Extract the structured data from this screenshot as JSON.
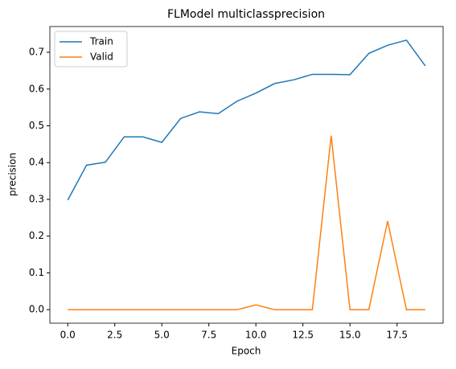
{
  "chart_data": {
    "type": "line",
    "title": "FLModel multiclassprecision",
    "x_label": "Epoch",
    "y_label": "precision",
    "x": [
      0,
      1,
      2,
      3,
      4,
      5,
      6,
      7,
      8,
      9,
      10,
      11,
      12,
      13,
      14,
      15,
      16,
      17,
      18,
      19
    ],
    "series": [
      {
        "name": "Train",
        "color": "#1f77b4",
        "values": [
          0.298,
          0.393,
          0.401,
          0.47,
          0.47,
          0.455,
          0.52,
          0.538,
          0.533,
          0.567,
          0.589,
          0.615,
          0.625,
          0.64,
          0.64,
          0.639,
          0.697,
          0.719,
          0.733,
          0.663
        ]
      },
      {
        "name": "Valid",
        "color": "#ff7f0e",
        "values": [
          0,
          0,
          0,
          0,
          0,
          0,
          0,
          0,
          0,
          0,
          0.013,
          0,
          0,
          0,
          0.473,
          0,
          0,
          0.241,
          0,
          0
        ]
      }
    ],
    "xlim": [
      -0.95,
      19.95
    ],
    "xticks": [
      {
        "value": 0,
        "label": "0.0"
      },
      2.5,
      {
        "value": 5,
        "label": "5.0"
      },
      7.5,
      {
        "value": 10,
        "label": "10.0"
      },
      12.5,
      {
        "value": 15,
        "label": "15.0"
      },
      17.5
    ],
    "ylim": [
      -0.0367,
      0.77
    ],
    "yticks": [
      {
        "value": 0,
        "label": "0.0"
      },
      0.1,
      0.2,
      0.3,
      0.4,
      0.5,
      0.6,
      0.7
    ],
    "legend": "upper left"
  }
}
